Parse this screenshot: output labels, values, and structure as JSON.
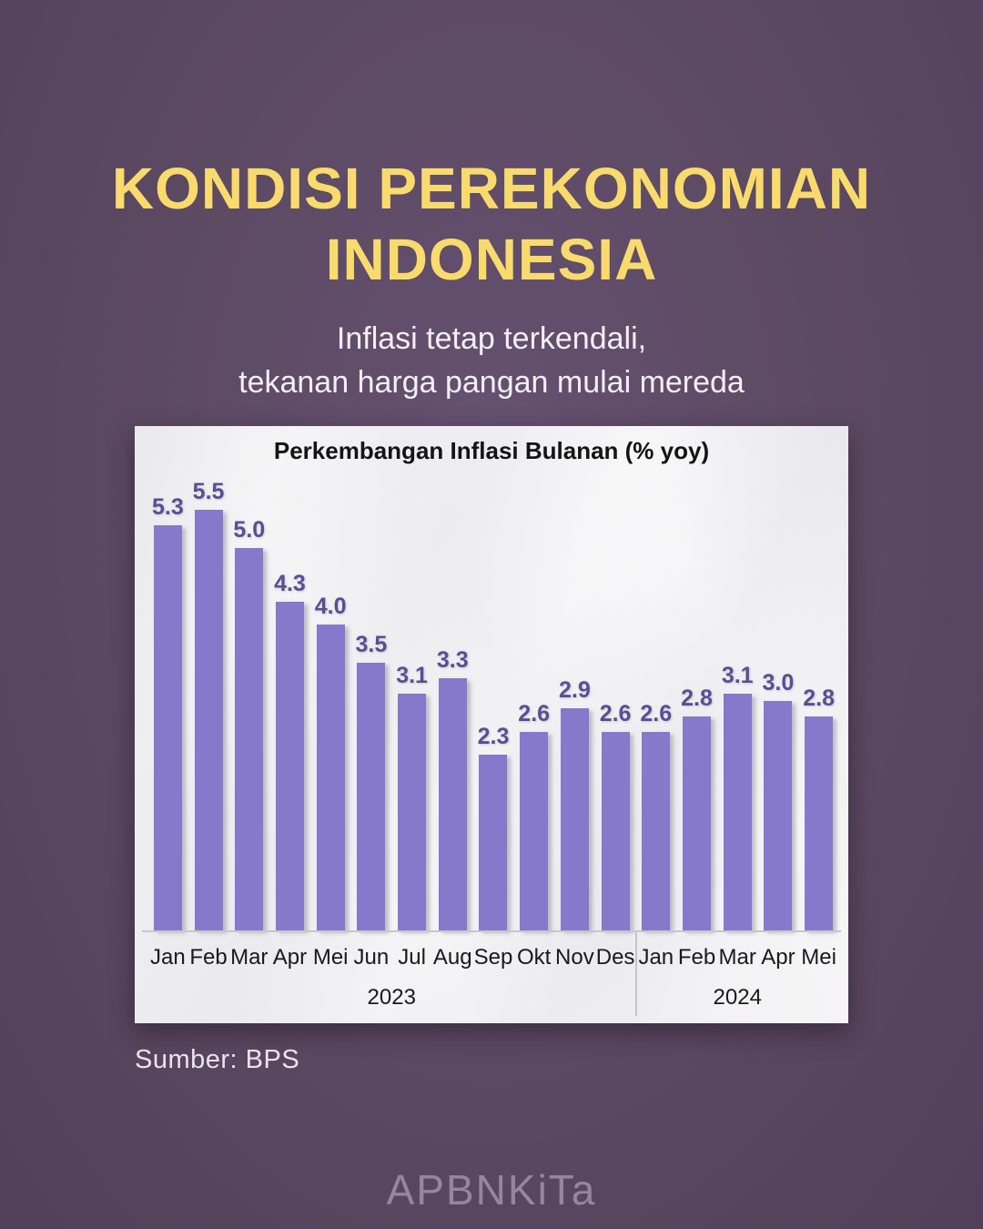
{
  "page": {
    "title_line1": "KONDISI PEREKONOMIAN",
    "title_line2": "INDONESIA",
    "subtitle_line1": "Inflasi tetap terkendali,",
    "subtitle_line2": "tekanan harga pangan mulai mereda",
    "source": "Sumber: BPS",
    "watermark": "APBNKiTa"
  },
  "colors": {
    "background": "#5d4a63",
    "title_yellow": "#f9db6d",
    "subtitle_white": "#f4eff5",
    "panel_white": "#f6f5f6",
    "bar_purple": "#8678cb",
    "bar_value_label": "#5a4e94",
    "axis_gray": "#c8c6ca"
  },
  "chart_data": {
    "type": "bar",
    "title": "Perkembangan Inflasi Bulanan (% yoy)",
    "categories": [
      "Jan",
      "Feb",
      "Mar",
      "Apr",
      "Mei",
      "Jun",
      "Jul",
      "Aug",
      "Sep",
      "Okt",
      "Nov",
      "Des",
      "Jan",
      "Feb",
      "Mar",
      "Apr",
      "Mei"
    ],
    "values": [
      5.3,
      5.5,
      5.0,
      4.3,
      4.0,
      3.5,
      3.1,
      3.3,
      2.3,
      2.6,
      2.9,
      2.6,
      2.6,
      2.8,
      3.1,
      3.0,
      2.8
    ],
    "value_labels": [
      "5.3",
      "5.5",
      "5.0",
      "4.3",
      "4.0",
      "3.5",
      "3.1",
      "3.3",
      "2.3",
      "2.6",
      "2.9",
      "2.6",
      "2.6",
      "2.8",
      "3.1",
      "3.0",
      "2.8"
    ],
    "groups": [
      {
        "label": "2023",
        "count": 12
      },
      {
        "label": "2024",
        "count": 5
      }
    ],
    "xlabel": "",
    "ylabel": "",
    "ylim": [
      0,
      6.6
    ],
    "grid": false,
    "legend": "none",
    "data_labels": "above-bars"
  }
}
